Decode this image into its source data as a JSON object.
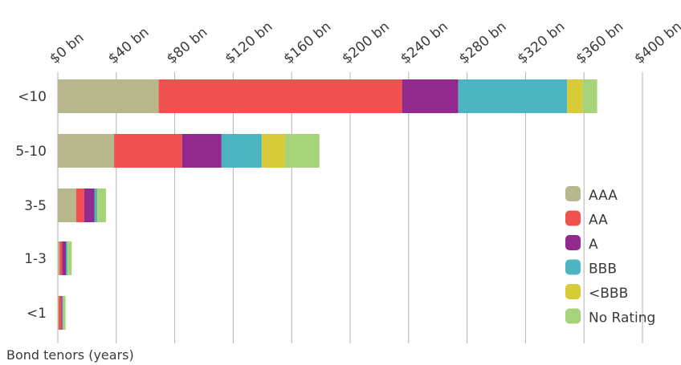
{
  "chart_data": {
    "type": "bar",
    "orientation": "horizontal",
    "stacked": true,
    "title": "",
    "xlabel": "",
    "ylabel": "Bond tenors (years)",
    "xlim": [
      0,
      400
    ],
    "x_ticks": [
      0,
      40,
      80,
      120,
      160,
      200,
      240,
      280,
      320,
      360,
      400
    ],
    "x_tick_labels": [
      "$0 bn",
      "$40 bn",
      "$80 bn",
      "$120 bn",
      "$160 bn",
      "$200 bn",
      "$240 bn",
      "$280 bn",
      "$320 bn",
      "$360 bn",
      "$400 bn"
    ],
    "grid": true,
    "legend_position": "right",
    "categories": [
      "<10",
      "5-10",
      "3-5",
      "1-3",
      "<1"
    ],
    "series": [
      {
        "name": "AAA",
        "color": "#b8b88f",
        "values": [
          69,
          38.5,
          12.5,
          1.2,
          0.6
        ]
      },
      {
        "name": "AA",
        "color": "#f0504e",
        "values": [
          166.5,
          46.5,
          5.5,
          1.8,
          1.8
        ]
      },
      {
        "name": "A",
        "color": "#922a8e",
        "values": [
          38.5,
          27,
          7,
          2.5,
          0.6
        ]
      },
      {
        "name": "BBB",
        "color": "#4db5c1",
        "values": [
          74.5,
          27.5,
          2,
          1.2,
          0.6
        ]
      },
      {
        "name": "<BBB",
        "color": "#d8cb3a",
        "values": [
          10.5,
          16,
          0.5,
          0.3,
          0.2
        ]
      },
      {
        "name": "No Rating",
        "color": "#a5d47a",
        "values": [
          10,
          23.5,
          5.5,
          2.5,
          1.5
        ]
      }
    ]
  }
}
